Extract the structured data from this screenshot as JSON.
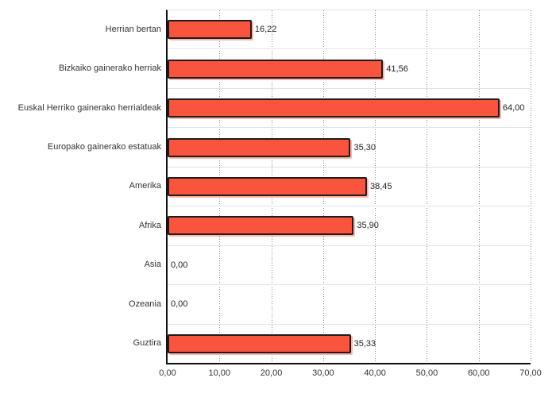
{
  "chart_data": {
    "type": "bar",
    "orientation": "horizontal",
    "title": "",
    "xlabel": "",
    "ylabel": "",
    "categories": [
      "Herrian bertan",
      "Bizkaiko gainerako herriak",
      "Euskal Herriko gainerako herrialdeak",
      "Europako gainerako estatuak",
      "Amerika",
      "Afrika",
      "Asia",
      "Ozeania",
      "Guztira"
    ],
    "values": [
      16.22,
      41.56,
      64.0,
      35.3,
      38.45,
      35.9,
      0.0,
      0.0,
      35.33
    ],
    "value_labels": [
      "16,22",
      "41,56",
      "64,00",
      "35,30",
      "38,45",
      "35,90",
      "0,00",
      "0,00",
      "35,33"
    ],
    "x_tick_labels": [
      "0,00",
      "10,00",
      "20,00",
      "30,00",
      "40,00",
      "50,00",
      "60,00",
      "70,00"
    ],
    "xlim": [
      0,
      70
    ],
    "grid": "vertical-dotted",
    "legend": "none",
    "colors": {
      "bar_fill": "#F9543D",
      "bar_border": "#1C1C1C",
      "bar_shadow": "#FAB3A6",
      "gridline": "#888888",
      "band_separator": "#E3E3E3",
      "axis": "#111111",
      "text": "#333333",
      "background": "#FFFFFF"
    }
  }
}
